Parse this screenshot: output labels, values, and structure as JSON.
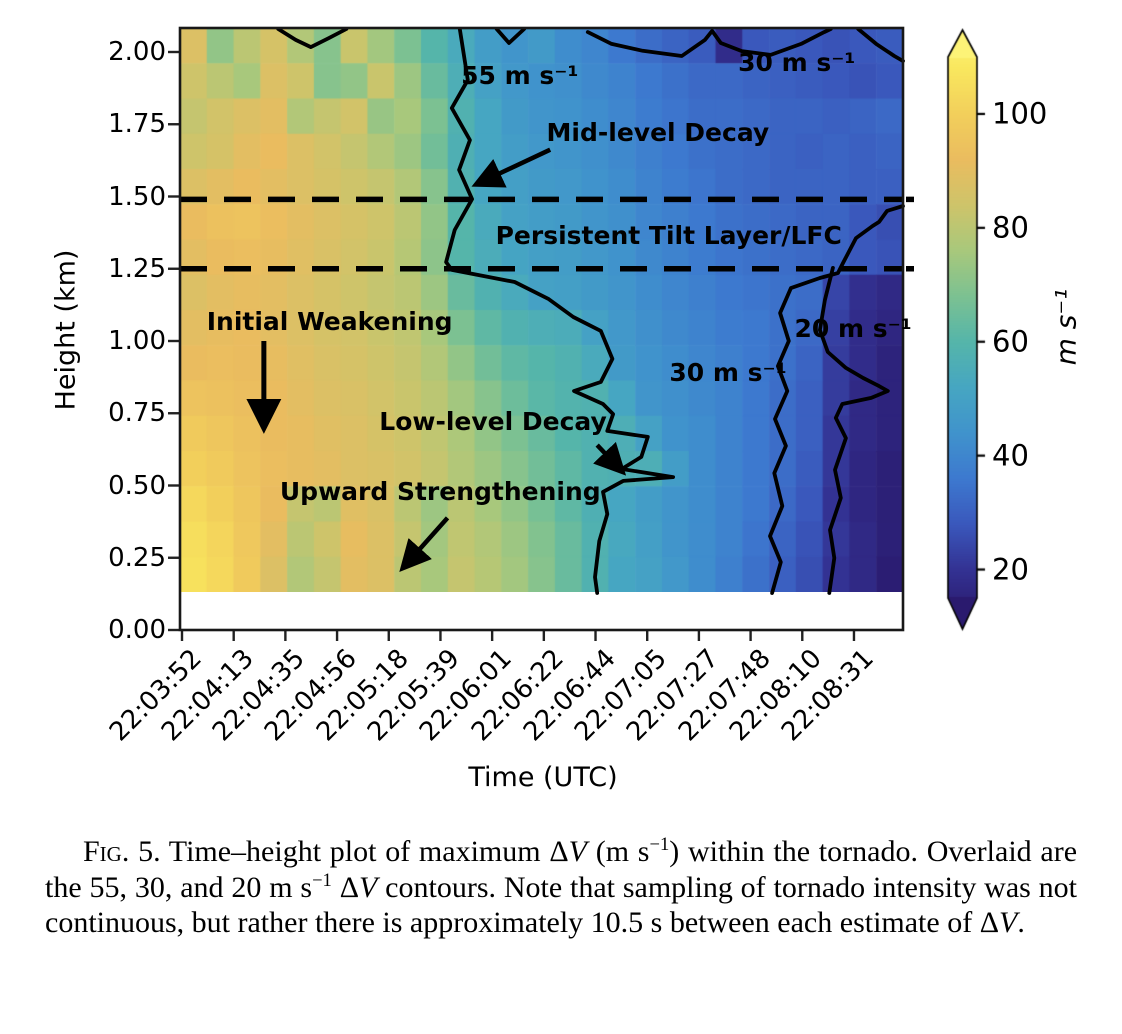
{
  "figure": {
    "y_axis": {
      "label": "Height (km)",
      "tick_labels": [
        "2.00",
        "1.75",
        "1.50",
        "1.25",
        "1.00",
        "0.75",
        "0.50",
        "0.25",
        "0.00"
      ]
    },
    "x_axis": {
      "label": "Time (UTC)",
      "tick_labels": [
        "22:03:52",
        "22:04:13",
        "22:04:35",
        "22:04:56",
        "22:05:18",
        "22:05:39",
        "22:06:01",
        "22:06:22",
        "22:06:44",
        "22:07:05",
        "22:07:27",
        "22:07:48",
        "22:08:10",
        "22:08:31"
      ]
    },
    "colorbar": {
      "unit_label": "m s⁻¹",
      "tick_labels": [
        "100",
        "80",
        "60",
        "40",
        "20"
      ],
      "tick_values": [
        100,
        80,
        60,
        40,
        20
      ],
      "vmin": 15,
      "vmax": 110
    }
  },
  "chart_data": {
    "type": "heatmap",
    "title": "",
    "xlabel": "Time (UTC)",
    "ylabel": "Height (km)",
    "values_units": "m s⁻¹",
    "x_ticklabels": [
      "22:03:52",
      "22:04:13",
      "22:04:35",
      "22:04:56",
      "22:05:18",
      "22:05:39",
      "22:06:01",
      "22:06:22",
      "22:06:44",
      "22:07:05",
      "22:07:27",
      "22:07:48",
      "22:08:10",
      "22:08:31"
    ],
    "y_ticks_km": [
      0.0,
      0.25,
      0.5,
      0.75,
      1.0,
      1.25,
      1.5,
      1.75,
      2.0
    ],
    "height_range_km": [
      0.125,
      2.083
    ],
    "sampling_interval_s": 10.5,
    "grid_note": "estimated max delta-V (m/s), rows top (2.02 km) to bottom (0.19 km), 27 time columns",
    "grid": [
      [
        88,
        72,
        80,
        86,
        78,
        70,
        83,
        75,
        68,
        60,
        54,
        48,
        45,
        47,
        42,
        40,
        36,
        33,
        31,
        29,
        18,
        28,
        29,
        28,
        27,
        28,
        29
      ],
      [
        84,
        80,
        76,
        88,
        84,
        70,
        72,
        83,
        74,
        64,
        56,
        50,
        46,
        44,
        43,
        41,
        39,
        36,
        34,
        32,
        32,
        31,
        30,
        29,
        28,
        27,
        28
      ],
      [
        82,
        85,
        88,
        90,
        78,
        82,
        85,
        73,
        76,
        68,
        58,
        52,
        47,
        45,
        44,
        42,
        40,
        37,
        35,
        33,
        33,
        32,
        31,
        31,
        30,
        31,
        32
      ],
      [
        84,
        86,
        90,
        92,
        88,
        85,
        82,
        78,
        74,
        66,
        57,
        52,
        48,
        46,
        45,
        43,
        41,
        38,
        36,
        34,
        33,
        32,
        31,
        30,
        31,
        30,
        31
      ],
      [
        88,
        90,
        92,
        90,
        88,
        86,
        84,
        82,
        78,
        70,
        58,
        52,
        49,
        47,
        46,
        44,
        42,
        39,
        37,
        35,
        33,
        32,
        31,
        31,
        31,
        30,
        30
      ],
      [
        92,
        94,
        95,
        93,
        90,
        88,
        86,
        84,
        80,
        72,
        60,
        54,
        50,
        48,
        47,
        45,
        43,
        40,
        38,
        36,
        34,
        33,
        32,
        31,
        31,
        28,
        26
      ],
      [
        90,
        92,
        93,
        91,
        89,
        87,
        85,
        83,
        79,
        71,
        60,
        55,
        51,
        49,
        48,
        46,
        44,
        41,
        39,
        37,
        35,
        34,
        33,
        32,
        31,
        28,
        27
      ],
      [
        88,
        90,
        91,
        90,
        88,
        86,
        84,
        82,
        80,
        74,
        64,
        58,
        54,
        50,
        49,
        47,
        45,
        42,
        40,
        38,
        36,
        35,
        34,
        33,
        24,
        19,
        17
      ],
      [
        90,
        91,
        92,
        90,
        88,
        86,
        85,
        83,
        81,
        76,
        68,
        62,
        58,
        56,
        55,
        50,
        46,
        43,
        41,
        39,
        37,
        36,
        34,
        32,
        23,
        18,
        16
      ],
      [
        92,
        93,
        92,
        91,
        89,
        87,
        86,
        84,
        82,
        78,
        72,
        66,
        62,
        60,
        58,
        54,
        47,
        44,
        42,
        40,
        38,
        36,
        34,
        31,
        22,
        18,
        15
      ],
      [
        95,
        94,
        93,
        92,
        90,
        88,
        87,
        85,
        83,
        80,
        75,
        70,
        65,
        61,
        59,
        58,
        52,
        45,
        43,
        41,
        39,
        36,
        33,
        30,
        22,
        17,
        15
      ],
      [
        98,
        96,
        94,
        92,
        91,
        89,
        88,
        86,
        84,
        81,
        77,
        72,
        68,
        64,
        60,
        58,
        56,
        50,
        44,
        42,
        39,
        36,
        33,
        30,
        21,
        17,
        15
      ],
      [
        100,
        98,
        95,
        93,
        91,
        90,
        88,
        87,
        85,
        82,
        78,
        74,
        70,
        66,
        62,
        58,
        57,
        56,
        48,
        42,
        39,
        36,
        33,
        29,
        21,
        16,
        14
      ],
      [
        103,
        100,
        96,
        92,
        82,
        80,
        89,
        87,
        80,
        74,
        80,
        76,
        72,
        67,
        62,
        57,
        52,
        48,
        45,
        42,
        39,
        36,
        32,
        28,
        20,
        16,
        14
      ],
      [
        105,
        102,
        97,
        90,
        80,
        84,
        91,
        88,
        82,
        75,
        81,
        78,
        74,
        69,
        64,
        58,
        53,
        49,
        45,
        42,
        39,
        35,
        31,
        27,
        21,
        17,
        14
      ],
      [
        106,
        103,
        98,
        88,
        78,
        82,
        90,
        88,
        80,
        76,
        82,
        79,
        75,
        70,
        64,
        58,
        52,
        50,
        46,
        42,
        38,
        34,
        30,
        26,
        20,
        17,
        13
      ]
    ],
    "colormap_stops": [
      [
        12,
        "#2a1a6e"
      ],
      [
        20,
        "#333293"
      ],
      [
        28,
        "#3a58bc"
      ],
      [
        36,
        "#3d79cf"
      ],
      [
        44,
        "#4093cc"
      ],
      [
        52,
        "#46a6c2"
      ],
      [
        60,
        "#55b5aa"
      ],
      [
        68,
        "#7cc192"
      ],
      [
        76,
        "#a8c87c"
      ],
      [
        84,
        "#cec46a"
      ],
      [
        92,
        "#eabc5f"
      ],
      [
        100,
        "#f2cf5b"
      ],
      [
        108,
        "#f9e75e"
      ],
      [
        114,
        "#fdf377"
      ]
    ],
    "dashed_lines_km": [
      1.49,
      1.25
    ],
    "contour_levels": [
      "55 m s⁻¹",
      "30 m s⁻¹",
      "20 m s⁻¹"
    ],
    "contours": [
      {
        "level": 55,
        "name": "contour-55-main",
        "points": [
          [
            0.387,
            2.083
          ],
          [
            0.398,
            1.903
          ],
          [
            0.376,
            1.806
          ],
          [
            0.401,
            1.695
          ],
          [
            0.386,
            1.592
          ],
          [
            0.404,
            1.491
          ],
          [
            0.38,
            1.384
          ],
          [
            0.368,
            1.273
          ],
          [
            0.376,
            1.246
          ],
          [
            0.463,
            1.204
          ],
          [
            0.51,
            1.145
          ],
          [
            0.544,
            1.083
          ],
          [
            0.582,
            1.035
          ],
          [
            0.598,
            0.938
          ],
          [
            0.582,
            0.858
          ],
          [
            0.545,
            0.827
          ],
          [
            0.585,
            0.782
          ],
          [
            0.599,
            0.747
          ],
          [
            0.591,
            0.689
          ],
          [
            0.647,
            0.668
          ],
          [
            0.638,
            0.599
          ],
          [
            0.611,
            0.557
          ],
          [
            0.682,
            0.529
          ],
          [
            0.613,
            0.516
          ],
          [
            0.585,
            0.478
          ],
          [
            0.591,
            0.401
          ],
          [
            0.58,
            0.308
          ],
          [
            0.574,
            0.183
          ],
          [
            0.577,
            0.128
          ]
        ]
      },
      {
        "level": 55,
        "name": "contour-55-notch-a",
        "points": [
          [
            0.136,
            2.09
          ],
          [
            0.16,
            2.042
          ],
          [
            0.181,
            2.017
          ],
          [
            0.206,
            2.048
          ],
          [
            0.23,
            2.09
          ]
        ]
      },
      {
        "level": 55,
        "name": "contour-55-notch-b",
        "points": [
          [
            0.438,
            2.09
          ],
          [
            0.455,
            2.031
          ],
          [
            0.476,
            2.085
          ]
        ]
      },
      {
        "level": 30,
        "name": "contour-30-top",
        "points": [
          [
            0.564,
            2.069
          ],
          [
            0.597,
            2.028
          ],
          [
            0.64,
            2.004
          ],
          [
            0.694,
            1.986
          ],
          [
            0.726,
            2.042
          ],
          [
            0.736,
            2.073
          ],
          [
            0.748,
            2.031
          ],
          [
            0.777,
            2.003
          ],
          [
            0.817,
            1.99
          ],
          [
            0.859,
            2.028
          ],
          [
            0.891,
            2.069
          ],
          [
            0.9,
            2.09
          ]
        ]
      },
      {
        "level": 30,
        "name": "contour-30-top-right",
        "points": [
          [
            0.938,
            2.09
          ],
          [
            0.963,
            2.028
          ],
          [
            0.988,
            1.986
          ],
          [
            1.0,
            1.969
          ]
        ]
      },
      {
        "level": 30,
        "name": "contour-30-main",
        "points": [
          [
            0.819,
            0.128
          ],
          [
            0.831,
            0.235
          ],
          [
            0.816,
            0.325
          ],
          [
            0.833,
            0.429
          ],
          [
            0.822,
            0.543
          ],
          [
            0.838,
            0.637
          ],
          [
            0.823,
            0.73
          ],
          [
            0.84,
            0.827
          ],
          [
            0.827,
            0.913
          ],
          [
            0.842,
            1.0
          ],
          [
            0.83,
            1.097
          ],
          [
            0.845,
            1.183
          ],
          [
            0.885,
            1.218
          ],
          [
            0.91,
            1.235
          ],
          [
            0.917,
            1.27
          ],
          [
            0.928,
            1.322
          ],
          [
            0.935,
            1.356
          ],
          [
            0.958,
            1.398
          ],
          [
            0.967,
            1.412
          ],
          [
            0.978,
            1.45
          ],
          [
            1.0,
            1.467
          ]
        ]
      },
      {
        "level": 20,
        "name": "contour-20-main",
        "points": [
          [
            0.903,
            1.253
          ],
          [
            0.892,
            1.142
          ],
          [
            0.885,
            1.038
          ],
          [
            0.896,
            0.962
          ],
          [
            0.921,
            0.907
          ],
          [
            0.945,
            0.872
          ],
          [
            0.967,
            0.844
          ],
          [
            0.979,
            0.827
          ],
          [
            0.956,
            0.803
          ],
          [
            0.916,
            0.782
          ],
          [
            0.907,
            0.734
          ],
          [
            0.921,
            0.664
          ],
          [
            0.906,
            0.554
          ],
          [
            0.914,
            0.457
          ],
          [
            0.899,
            0.346
          ],
          [
            0.905,
            0.249
          ],
          [
            0.898,
            0.128
          ]
        ]
      }
    ],
    "annotations": [
      {
        "id": "contour-label-55",
        "text": "55 m s⁻¹",
        "x": 0.47,
        "h": 1.916
      },
      {
        "id": "contour-label-30-top",
        "text": "30 m s⁻¹",
        "x": 0.853,
        "h": 1.962
      },
      {
        "id": "mid-level-decay",
        "text": "Mid-level Decay",
        "x": 0.661,
        "h": 1.72,
        "arrow": {
          "x1": 0.512,
          "h1": 1.662,
          "x2": 0.415,
          "h2": 1.548
        }
      },
      {
        "id": "persistent-tilt-layer",
        "text": "Persistent Tilt Layer/LFC",
        "x": 0.676,
        "h": 1.363
      },
      {
        "id": "initial-weakening",
        "text": "Initial Weakening",
        "x": 0.207,
        "h": 1.066,
        "arrow": {
          "x1": 0.116,
          "h1": 1.0,
          "x2": 0.116,
          "h2": 0.715
        }
      },
      {
        "id": "contour-label-30-mid",
        "text": "30 m s⁻¹",
        "x": 0.758,
        "h": 0.888
      },
      {
        "id": "contour-label-20",
        "text": "20 m s⁻¹",
        "x": 0.931,
        "h": 1.042
      },
      {
        "id": "low-level-decay",
        "text": "Low-level Decay",
        "x": 0.433,
        "h": 0.72,
        "arrow": {
          "x1": 0.577,
          "h1": 0.64,
          "x2": 0.608,
          "h2": 0.558
        }
      },
      {
        "id": "upward-strengthening",
        "text": "Upward Strengthening",
        "x": 0.36,
        "h": 0.478,
        "arrow": {
          "x1": 0.37,
          "h1": 0.388,
          "x2": 0.312,
          "h2": 0.225
        }
      }
    ],
    "legend_position": "right-colorbar",
    "grid_on": false
  },
  "caption": {
    "segments": [
      {
        "t": "Fig. 5.",
        "s": "sc"
      },
      {
        "t": " Time–height plot of maximum Δ",
        "s": "n"
      },
      {
        "t": "V",
        "s": "i"
      },
      {
        "t": " (m s",
        "s": "n"
      },
      {
        "t": "−1",
        "s": "sup"
      },
      {
        "t": ") within the tornado. Overlaid are the 55, 30, and 20 m s",
        "s": "n"
      },
      {
        "t": "−1",
        "s": "sup"
      },
      {
        "t": " Δ",
        "s": "n"
      },
      {
        "t": "V",
        "s": "i"
      },
      {
        "t": " contours. Note that sampling of tornado intensity was not continuous, but rather there is approximately 10.5 s between each estimate of Δ",
        "s": "n"
      },
      {
        "t": "V",
        "s": "i"
      },
      {
        "t": ".",
        "s": "n"
      }
    ]
  }
}
